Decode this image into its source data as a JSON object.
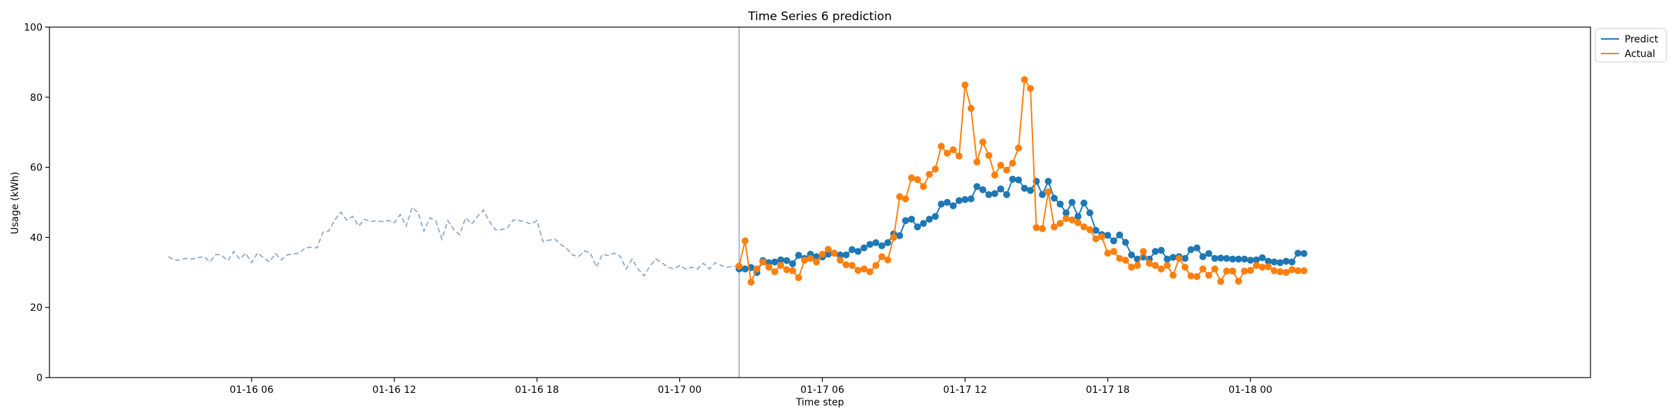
{
  "chart_data": {
    "type": "line",
    "title": "Time Series 6 prediction",
    "xlabel": "Time step",
    "ylabel": "Usage (kWh)",
    "x_unit": "hours since 01-16 00:00",
    "ylim": [
      0,
      100
    ],
    "xlim": [
      -2.5,
      62.3
    ],
    "yticks": [
      0,
      20,
      40,
      60,
      80,
      100
    ],
    "xticks": [
      {
        "label": "01-16 06",
        "value": 6
      },
      {
        "label": "01-16 12",
        "value": 12
      },
      {
        "label": "01-16 18",
        "value": 18
      },
      {
        "label": "01-17 00",
        "value": 24
      },
      {
        "label": "01-17 06",
        "value": 30
      },
      {
        "label": "01-17 12",
        "value": 36
      },
      {
        "label": "01-17 18",
        "value": 42
      },
      {
        "label": "01-18 00",
        "value": 48
      }
    ],
    "grid": false,
    "legend_position": "outside-top-right",
    "forecast_start": 26.5,
    "colors": {
      "history": "#8fa7cf",
      "predict": "#1f77b4",
      "actual": "#ff7f0e",
      "divider": "#8fa7cf",
      "axis": "#000000"
    },
    "history": {
      "x_start": 2.5,
      "step": 0.25,
      "values": [
        34.5,
        33.5,
        33.6,
        34.0,
        33.8,
        34.2,
        34.5,
        33.0,
        35.2,
        34.8,
        33.4,
        36.0,
        33.8,
        35.5,
        32.8,
        35.6,
        34.2,
        33.0,
        35.4,
        33.6,
        35.0,
        35.3,
        35.5,
        37.0,
        37.2,
        37.0,
        41.5,
        41.8,
        45.0,
        47.2,
        45.0,
        46.0,
        43.2,
        45.2,
        44.5,
        44.8,
        44.5,
        44.8,
        44.2,
        46.5,
        43.2,
        48.6,
        47.0,
        41.8,
        45.6,
        44.6,
        39.5,
        44.8,
        42.2,
        40.8,
        45.6,
        43.8,
        46.0,
        47.8,
        44.5,
        42.2,
        42.2,
        42.6,
        45.0,
        44.8,
        44.4,
        43.8,
        44.8,
        38.8,
        39.2,
        39.5,
        38.0,
        36.8,
        35.0,
        34.5,
        36.2,
        35.5,
        31.5,
        35.2,
        34.8,
        35.5,
        34.6,
        31.0,
        33.8,
        31.0,
        29.0,
        31.8,
        33.8,
        32.8,
        31.5,
        31.0,
        32.0,
        31.0,
        31.5,
        31.0,
        32.6,
        31.0,
        32.8,
        32.0,
        31.5,
        31.8,
        31.5,
        31.5,
        31.8,
        31.5
      ]
    },
    "series": [
      {
        "name": "Predict",
        "x_start": 26.5,
        "step": 0.25,
        "values": [
          31.0,
          31.0,
          31.4,
          30.0,
          33.4,
          32.8,
          33.0,
          33.6,
          33.4,
          32.5,
          34.9,
          34.0,
          35.2,
          34.5,
          34.4,
          35.2,
          35.5,
          35.0,
          35.0,
          36.5,
          36.0,
          37.0,
          38.0,
          38.5,
          37.6,
          38.5,
          41.0,
          40.5,
          44.8,
          45.2,
          43.0,
          44.0,
          45.2,
          46.0,
          49.5,
          50.0,
          49.0,
          50.5,
          50.8,
          51.0,
          54.5,
          53.6,
          52.2,
          52.5,
          53.8,
          52.2,
          56.6,
          56.4,
          54.0,
          53.4,
          56.0,
          52.2,
          56.0,
          51.2,
          49.5,
          47.0,
          50.0,
          46.0,
          49.8,
          47.0,
          42.0,
          40.8,
          40.6,
          39.0,
          40.7,
          38.6,
          35.0,
          33.8,
          34.4,
          33.8,
          36.0,
          36.3,
          33.8,
          34.3,
          34.5,
          34.0,
          36.5,
          37.0,
          34.5,
          35.4,
          34.0,
          34.1,
          34.0,
          33.8,
          33.8,
          33.8,
          33.5,
          33.6,
          34.2,
          33.2,
          33.0,
          32.8,
          33.2,
          33.0,
          35.5,
          35.4
        ]
      },
      {
        "name": "Actual",
        "x_start": 26.5,
        "step": 0.25,
        "values": [
          31.8,
          39.0,
          27.2,
          31.0,
          33.0,
          31.5,
          30.2,
          32.0,
          30.8,
          30.5,
          28.5,
          33.5,
          34.0,
          33.0,
          35.2,
          36.6,
          35.5,
          33.5,
          32.2,
          32.0,
          30.6,
          31.0,
          30.2,
          32.0,
          34.5,
          33.6,
          40.0,
          51.6,
          51.0,
          57.0,
          56.5,
          54.5,
          58.0,
          59.5,
          66.0,
          64.0,
          65.0,
          63.2,
          83.5,
          76.8,
          61.5,
          67.2,
          63.4,
          57.8,
          60.6,
          59.2,
          61.2,
          65.5,
          85.0,
          82.5,
          42.8,
          42.5,
          53.0,
          43.0,
          44.0,
          45.4,
          45.0,
          44.2,
          43.0,
          42.2,
          39.6,
          40.2,
          35.5,
          36.0,
          34.0,
          33.5,
          31.5,
          32.0,
          36.0,
          32.6,
          32.0,
          31.0,
          32.0,
          29.2,
          34.0,
          31.5,
          29.0,
          28.8,
          31.0,
          29.2,
          31.0,
          27.4,
          30.4,
          30.4,
          27.5,
          30.4,
          30.6,
          32.0,
          31.5,
          31.6,
          30.5,
          30.2,
          30.0,
          30.8,
          30.5,
          30.5
        ]
      }
    ]
  }
}
